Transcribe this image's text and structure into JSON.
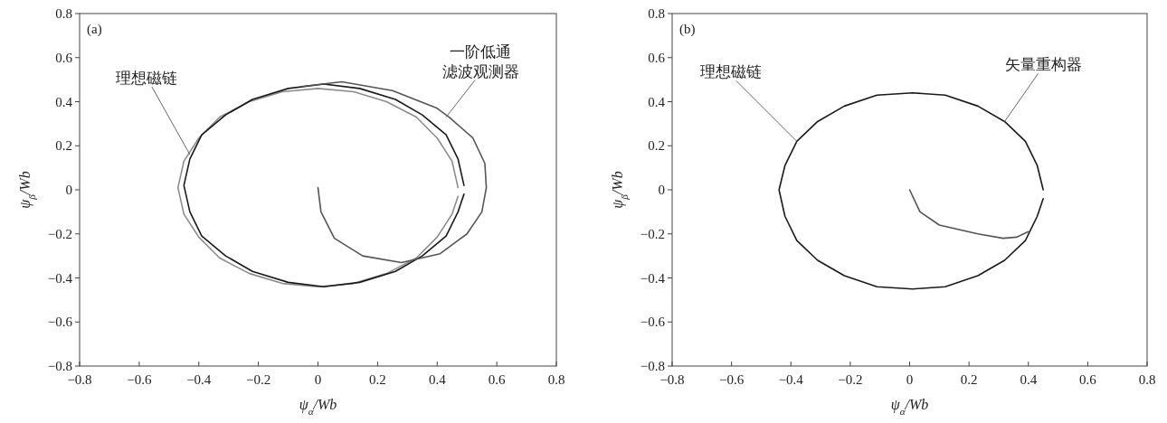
{
  "chart_data": [
    {
      "type": "line",
      "xlabel": "ψ$_{α}$/Wb",
      "ylabel": "ψ$_{β}$/Wb",
      "xlim": [
        -0.8,
        0.8
      ],
      "ylim": [
        -0.8,
        0.8
      ],
      "xticks": [
        -0.8,
        -0.6,
        -0.4,
        -0.2,
        0,
        0.2,
        0.4,
        0.6,
        0.8
      ],
      "yticks": [
        -0.8,
        -0.6,
        -0.4,
        -0.2,
        0,
        0.2,
        0.4,
        0.6,
        0.8
      ],
      "annotations": [
        "(a)",
        {
          "text": "理想磁链",
          "x": -0.43,
          "y": 0.16
        },
        {
          "text": "一阶低通滤波观测器",
          "x": 0.43,
          "y": 0.33
        }
      ],
      "series": [
        {
          "color": "#8c8c8c",
          "x": [
            0.47,
            0.45,
            0.4,
            0.33,
            0.23,
            0.12,
            0,
            -0.12,
            -0.23,
            -0.33,
            -0.4,
            -0.45,
            -0.47,
            -0.45,
            -0.4,
            -0.33,
            -0.23,
            -0.12,
            0,
            0.12,
            0.23,
            0.33,
            0.4,
            0.45,
            0.47
          ],
          "values": [
            0.01,
            0.13,
            0.235,
            0.33,
            0.4,
            0.445,
            0.46,
            0.445,
            0.4,
            0.33,
            0.235,
            0.13,
            0.01,
            -0.11,
            -0.215,
            -0.31,
            -0.38,
            -0.425,
            -0.44,
            -0.425,
            -0.38,
            -0.31,
            -0.215,
            -0.11,
            -0.03
          ]
        },
        {
          "color": "#1a1a1a",
          "x": [
            0.49,
            0.47,
            0.43,
            0.35,
            0.26,
            0.14,
            0.02,
            -0.1,
            -0.22,
            -0.31,
            -0.39,
            -0.43,
            -0.45,
            -0.43,
            -0.39,
            -0.31,
            -0.22,
            -0.1,
            0.02,
            0.14,
            0.26,
            0.35,
            0.43,
            0.47,
            0.49
          ],
          "values": [
            0.02,
            0.14,
            0.25,
            0.34,
            0.41,
            0.46,
            0.48,
            0.46,
            0.41,
            0.34,
            0.25,
            0.14,
            0.02,
            -0.1,
            -0.21,
            -0.3,
            -0.37,
            -0.42,
            -0.44,
            -0.42,
            -0.37,
            -0.3,
            -0.21,
            -0.1,
            -0.02
          ]
        },
        {
          "color": "#555555",
          "x": [
            0,
            0.01,
            0.055,
            0.15,
            0.28,
            0.41,
            0.5,
            0.55,
            0.565,
            0.56,
            0.52,
            0.44,
            0.4,
            0.25,
            0.08,
            -0.05
          ],
          "values": [
            0.01,
            -0.1,
            -0.22,
            -0.3,
            -0.33,
            -0.29,
            -0.2,
            -0.1,
            0.01,
            0.12,
            0.235,
            0.33,
            0.37,
            0.45,
            0.49,
            0.47
          ]
        }
      ]
    },
    {
      "type": "line",
      "xlabel": "ψ$_{α}$/Wb",
      "ylabel": "ψ$_{β}$/Wb",
      "xlim": [
        -0.8,
        0.8
      ],
      "ylim": [
        -0.8,
        0.8
      ],
      "xticks": [
        -0.8,
        -0.6,
        -0.4,
        -0.2,
        0,
        0.2,
        0.4,
        0.6,
        0.8
      ],
      "yticks": [
        -0.8,
        -0.6,
        -0.4,
        -0.2,
        0,
        0.2,
        0.4,
        0.6,
        0.8
      ],
      "annotations": [
        "(b)",
        {
          "text": "理想磁链",
          "x": -0.38,
          "y": 0.22
        },
        {
          "text": "矢量重构器",
          "x": 0.32,
          "y": 0.31
        }
      ],
      "series": [
        {
          "color": "#1a1a1a",
          "x": [
            0.45,
            0.43,
            0.39,
            0.32,
            0.23,
            0.12,
            0.01,
            -0.11,
            -0.22,
            -0.31,
            -0.38,
            -0.42,
            -0.44,
            -0.42,
            -0.38,
            -0.31,
            -0.22,
            -0.11,
            0.01,
            0.12,
            0.23,
            0.32,
            0.39,
            0.43,
            0.45
          ],
          "values": [
            0,
            0.11,
            0.22,
            0.31,
            0.38,
            0.43,
            0.44,
            0.43,
            0.38,
            0.31,
            0.22,
            0.11,
            0,
            -0.12,
            -0.23,
            -0.32,
            -0.39,
            -0.44,
            -0.45,
            -0.44,
            -0.39,
            -0.32,
            -0.23,
            -0.12,
            -0.04
          ]
        },
        {
          "color": "#555555",
          "x": [
            0,
            0.035,
            0.1,
            0.23,
            0.315,
            0.36,
            0.4
          ],
          "values": [
            0,
            -0.1,
            -0.16,
            -0.2,
            -0.22,
            -0.215,
            -0.19
          ]
        }
      ]
    }
  ]
}
